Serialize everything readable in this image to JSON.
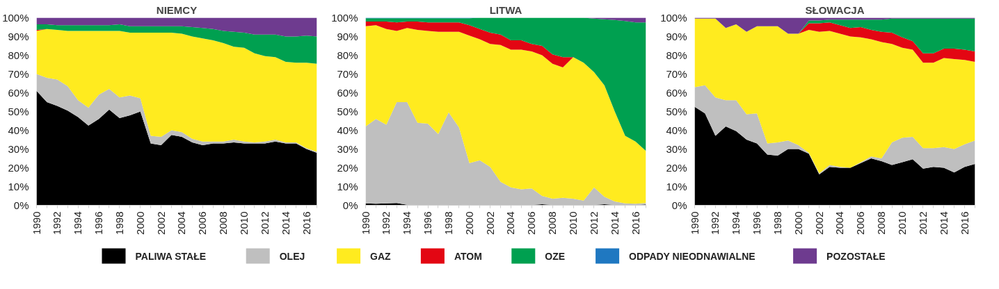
{
  "chart_data": [
    {
      "type": "area",
      "title": "NIEMCY",
      "stacked": true,
      "grid": false,
      "x": [
        1990,
        1991,
        1992,
        1993,
        1994,
        1995,
        1996,
        1997,
        1998,
        1999,
        2000,
        2001,
        2002,
        2003,
        2004,
        2005,
        2006,
        2007,
        2008,
        2009,
        2010,
        2011,
        2012,
        2013,
        2014,
        2015,
        2016,
        2017
      ],
      "xlim": [
        1990,
        2017
      ],
      "xticks": [
        1990,
        1992,
        1994,
        1996,
        1998,
        2000,
        2002,
        2004,
        2006,
        2008,
        2010,
        2012,
        2014,
        2016
      ],
      "ylim": [
        0,
        100
      ],
      "yticks": [
        {
          "value": 0,
          "label": "0%"
        },
        {
          "value": 10,
          "label": "10%"
        },
        {
          "value": 20,
          "label": "20%"
        },
        {
          "value": 30,
          "label": "30%"
        },
        {
          "value": 40,
          "label": "40%"
        },
        {
          "value": 50,
          "label": "50%"
        },
        {
          "value": 60,
          "label": "60%"
        },
        {
          "value": 70,
          "label": "70%"
        },
        {
          "value": 80,
          "label": "80%"
        },
        {
          "value": 90,
          "label": "90%"
        },
        {
          "value": 100,
          "label": "100%"
        }
      ],
      "series": [
        {
          "color": "#000000",
          "values": [
            61,
            55,
            53,
            50.5,
            47,
            42.5,
            46,
            51,
            46.5,
            48,
            50,
            33,
            32,
            37.5,
            36.5,
            33.5,
            32,
            33,
            33,
            33.5,
            33,
            33,
            33,
            34,
            33,
            33,
            30,
            28
          ]
        },
        {
          "color": "#bfbfbf",
          "values": [
            9,
            13,
            14,
            13,
            9,
            9.5,
            13,
            11,
            11,
            10.5,
            7,
            4,
            4.5,
            2.5,
            2.5,
            2,
            2,
            1,
            1,
            1.5,
            1,
            0.5,
            1,
            1,
            0.5,
            0.5,
            0.5,
            0.5
          ]
        },
        {
          "color": "#ffeb1f",
          "values": [
            23,
            26,
            26.5,
            29.5,
            37,
            41,
            34,
            31,
            35.5,
            33.5,
            35,
            55,
            55.5,
            52,
            52.5,
            54.5,
            55,
            54,
            52.5,
            49.5,
            50,
            47.5,
            45.5,
            44,
            43,
            42.5,
            45.5,
            47
          ]
        },
        {
          "color": "#e30613",
          "values": [
            0.5,
            0,
            0,
            0,
            0,
            0,
            0,
            0,
            0,
            0,
            0,
            0,
            0,
            0,
            0,
            0,
            0,
            0,
            0,
            0,
            0,
            0,
            0,
            0,
            0,
            0,
            0,
            0
          ]
        },
        {
          "color": "#00a050",
          "values": [
            3,
            2.5,
            2.5,
            3,
            3,
            3,
            3,
            3,
            3.5,
            3.5,
            3.5,
            3.5,
            3.5,
            3.5,
            4,
            5,
            5.5,
            6,
            6.5,
            8,
            8,
            10,
            11.5,
            12,
            13.5,
            14,
            14.5,
            14.5
          ]
        },
        {
          "color": "#6e3b8f",
          "values": [
            3.5,
            3.5,
            4,
            4,
            4,
            4,
            4,
            4,
            3.5,
            4.5,
            4.5,
            4.5,
            4.5,
            4.5,
            4.5,
            5,
            5.5,
            6,
            7,
            7.5,
            8,
            9,
            9,
            9,
            10,
            10,
            9.5,
            10
          ]
        }
      ]
    },
    {
      "type": "area",
      "title": "LITWA",
      "stacked": true,
      "legend": "bottom",
      "grid": false,
      "x": [
        1990,
        1991,
        1992,
        1993,
        1994,
        1995,
        1996,
        1997,
        1998,
        1999,
        2000,
        2001,
        2002,
        2003,
        2004,
        2005,
        2006,
        2007,
        2008,
        2009,
        2010,
        2011,
        2012,
        2013,
        2014,
        2015,
        2016,
        2017
      ],
      "xlim": [
        1990,
        2017
      ],
      "xticks": [
        1990,
        1992,
        1994,
        1996,
        1998,
        2000,
        2002,
        2004,
        2006,
        2008,
        2010,
        2012,
        2014,
        2016
      ],
      "ylim": [
        0,
        100
      ],
      "yticks": [
        {
          "value": 0,
          "label": "0%"
        },
        {
          "value": 10,
          "label": "10%"
        },
        {
          "value": 20,
          "label": "20%"
        },
        {
          "value": 30,
          "label": "30%"
        },
        {
          "value": 40,
          "label": "40%"
        },
        {
          "value": 50,
          "label": "50%"
        },
        {
          "value": 60,
          "label": "60%"
        },
        {
          "value": 70,
          "label": "70%"
        },
        {
          "value": 80,
          "label": "80%"
        },
        {
          "value": 90,
          "label": "90%"
        },
        {
          "value": 100,
          "label": "100%"
        }
      ],
      "series": [
        {
          "name": "PALIWA STAŁE",
          "color": "#000000",
          "values": [
            1,
            0.8,
            1,
            1.2,
            0.3,
            0.2,
            0.2,
            0.2,
            0.3,
            0.3,
            0.2,
            0.2,
            0.2,
            0.2,
            0.2,
            0.2,
            0.2,
            0.6,
            0.2,
            0.2,
            0.2,
            0.2,
            0.2,
            0.6,
            0.2,
            0.1,
            0.1,
            0.5
          ]
        },
        {
          "name": "OLEJ",
          "color": "#bfbfbf",
          "values": [
            41,
            45.2,
            42,
            53.8,
            54.7,
            43.8,
            43.3,
            37.8,
            49.2,
            41.2,
            22.3,
            23.8,
            20.3,
            12.3,
            9.3,
            8.3,
            8.8,
            4.4,
            3.3,
            3.8,
            3.3,
            2.3,
            9.3,
            3.9,
            1.8,
            0.9,
            0.7,
            0.7
          ]
        },
        {
          "name": "GAZ",
          "color": "#ffeb1f",
          "values": [
            53.5,
            50,
            51,
            38,
            39.5,
            49.5,
            49.5,
            54.5,
            43,
            51,
            68,
            64.5,
            65.5,
            73,
            73.5,
            74.5,
            73,
            75,
            72,
            69.5,
            75.5,
            73.5,
            61.5,
            59.5,
            48,
            36,
            33.2,
            27.8
          ]
        },
        {
          "name": "ATOM",
          "color": "#e30613",
          "values": [
            2.5,
            2,
            4,
            4.5,
            3.5,
            4.5,
            4.5,
            5,
            5,
            5,
            5.5,
            5.5,
            6,
            5.5,
            5,
            5,
            4,
            5,
            5,
            5.5,
            0,
            0,
            0,
            0,
            0,
            0,
            0,
            0
          ]
        },
        {
          "name": "OZE",
          "color": "#00a050",
          "values": [
            1.7,
            1.7,
            1.7,
            2.2,
            1.7,
            1.7,
            2.2,
            2.2,
            2.2,
            2.2,
            3.7,
            6,
            8,
            9,
            12,
            12,
            14,
            15,
            19.5,
            21,
            21,
            24,
            28.5,
            35.2,
            48.8,
            61.2,
            63.5,
            68.5
          ]
        },
        {
          "name": "ODPADY NIEODNAWIALNE",
          "color": "#1f78c1",
          "values": [
            0.3,
            0.3,
            0.3,
            0.3,
            0.3,
            0.3,
            0.3,
            0.3,
            0.3,
            0.3,
            0.3,
            0,
            0,
            0,
            0,
            0,
            0,
            0,
            0,
            0,
            0,
            0,
            0,
            0,
            0,
            0,
            0,
            0
          ]
        },
        {
          "name": "POZOSTAŁE",
          "color": "#6e3b8f",
          "values": [
            null,
            null,
            null,
            null,
            null,
            null,
            null,
            null,
            null,
            null,
            null,
            null,
            null,
            null,
            null,
            null,
            null,
            null,
            null,
            null,
            null,
            0,
            0.5,
            0.8,
            1.2,
            1.8,
            2.5,
            2.5
          ]
        }
      ]
    },
    {
      "type": "area",
      "title": "SŁOWACJA",
      "stacked": true,
      "grid": false,
      "x": [
        1990,
        1991,
        1992,
        1993,
        1994,
        1995,
        1996,
        1997,
        1998,
        1999,
        2000,
        2001,
        2002,
        2003,
        2004,
        2005,
        2006,
        2007,
        2008,
        2009,
        2010,
        2011,
        2012,
        2013,
        2014,
        2015,
        2016,
        2017
      ],
      "xlim": [
        1990,
        2017
      ],
      "xticks": [
        1990,
        1992,
        1994,
        1996,
        1998,
        2000,
        2002,
        2004,
        2006,
        2008,
        2010,
        2012,
        2014,
        2016
      ],
      "ylim": [
        0,
        100
      ],
      "yticks": [
        {
          "value": 0,
          "label": "0%"
        },
        {
          "value": 10,
          "label": "10%"
        },
        {
          "value": 20,
          "label": "20%"
        },
        {
          "value": 30,
          "label": "30%"
        },
        {
          "value": 40,
          "label": "40%"
        },
        {
          "value": 50,
          "label": "50%"
        },
        {
          "value": 60,
          "label": "60%"
        },
        {
          "value": 70,
          "label": "70%"
        },
        {
          "value": 80,
          "label": "80%"
        },
        {
          "value": 90,
          "label": "90%"
        },
        {
          "value": 100,
          "label": "100%"
        }
      ],
      "series": [
        {
          "color": "#000000",
          "values": [
            52.5,
            49,
            37,
            42,
            39.5,
            35,
            33,
            27,
            26.5,
            30,
            30,
            27.5,
            16.5,
            20.5,
            20,
            20,
            22.5,
            25,
            23.5,
            21.5,
            23,
            24.5,
            19.5,
            20.5,
            20,
            17.5,
            20.5,
            22
          ]
        },
        {
          "color": "#bfbfbf",
          "values": [
            10.5,
            15,
            20.5,
            14,
            16.5,
            13.5,
            16,
            6,
            7,
            4.5,
            2,
            0.5,
            0.5,
            1,
            0.5,
            0,
            0.5,
            1,
            1.5,
            12,
            13,
            12,
            11,
            10,
            11,
            12.5,
            12,
            12.5
          ]
        },
        {
          "color": "#ffeb1f",
          "values": [
            36.5,
            35.5,
            42,
            38.5,
            40.5,
            44,
            46.5,
            62.5,
            62,
            57,
            59.5,
            65.5,
            75.5,
            71.5,
            71,
            70,
            66.5,
            62.5,
            62,
            52.5,
            48,
            46.5,
            45.5,
            45.5,
            47.5,
            48,
            45,
            42
          ]
        },
        {
          "color": "#e30613",
          "values": [
            0,
            0,
            0,
            0,
            0,
            0,
            0,
            0,
            0,
            0,
            0,
            3.5,
            4.5,
            4.5,
            4.5,
            4.5,
            5.5,
            5,
            5.5,
            6,
            5.5,
            4.5,
            5,
            5,
            5,
            5.5,
            5.5,
            5.5
          ]
        },
        {
          "color": "#00a050",
          "values": [
            0,
            0,
            0,
            0,
            0,
            0,
            0,
            0,
            0,
            0,
            0,
            1.5,
            1.5,
            1.5,
            3,
            4.5,
            4,
            5.5,
            6.5,
            7.5,
            10,
            12,
            18.5,
            18.5,
            16,
            16,
            16.5,
            17.5
          ]
        },
        {
          "color": "#6e3b8f",
          "values": [
            0.5,
            0.5,
            0.5,
            5.5,
            3.5,
            7.5,
            4.5,
            4.5,
            4.5,
            8.5,
            8.5,
            1.5,
            1.5,
            1,
            1,
            1,
            1,
            1,
            1,
            0.5,
            0.5,
            0.5,
            0.5,
            0.5,
            0.5,
            0.5,
            0.5,
            0.5
          ]
        }
      ]
    }
  ]
}
